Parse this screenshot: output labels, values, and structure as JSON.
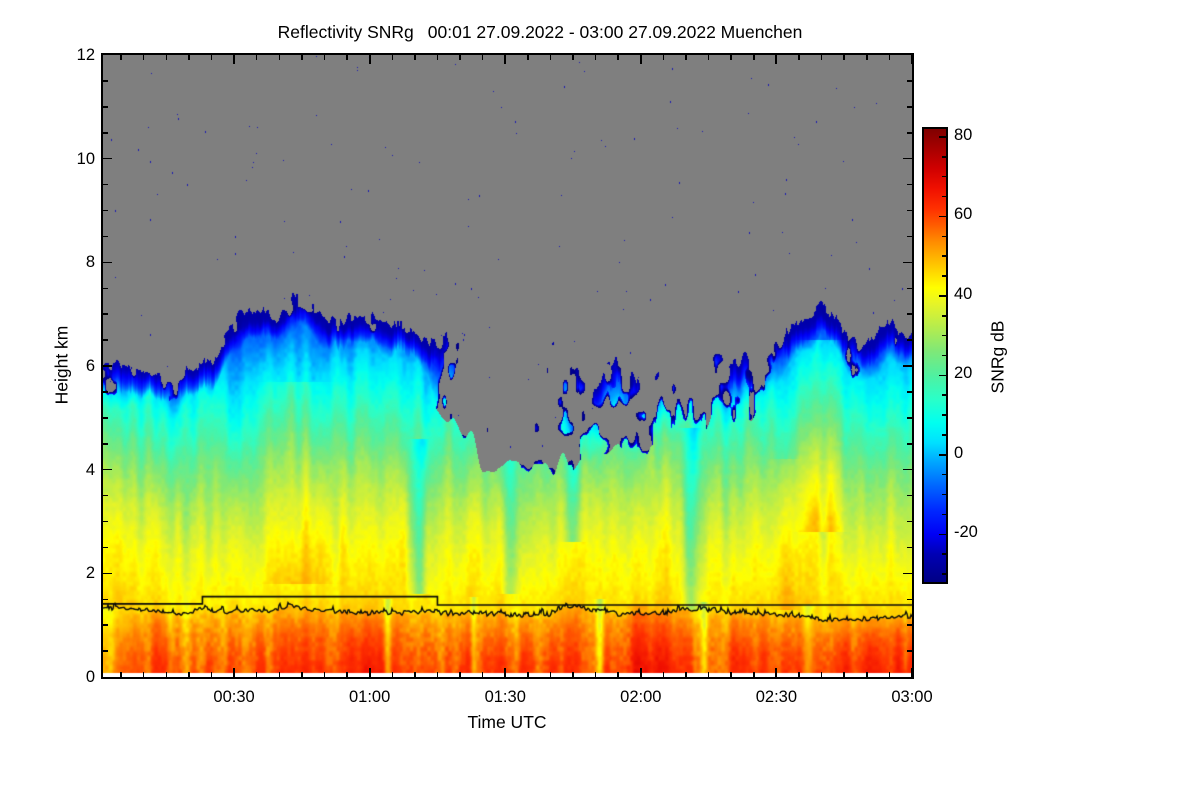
{
  "figure": {
    "background": "#ffffff"
  },
  "title": {
    "quantity": "Reflectivity SNRg",
    "period": "00:01 27.09.2022 - 03:00 27.09.2022 Muenchen"
  },
  "axes": {
    "x": {
      "label": "Time UTC",
      "start_min": 1,
      "end_min": 180,
      "major_ticks": [
        {
          "minute": 30,
          "label": "00:30"
        },
        {
          "minute": 60,
          "label": "01:00"
        },
        {
          "minute": 90,
          "label": "01:30"
        },
        {
          "minute": 120,
          "label": "02:00"
        },
        {
          "minute": 150,
          "label": "02:30"
        },
        {
          "minute": 180,
          "label": "03:00"
        }
      ],
      "minor_step_min": 5
    },
    "y": {
      "label": "Height km",
      "min": 0,
      "max": 12,
      "major_ticks": [
        0,
        2,
        4,
        6,
        8,
        10,
        12
      ],
      "minor_step": 0.5
    }
  },
  "colorbar": {
    "label": "SNRg dB",
    "value_min": -32,
    "value_max": 82,
    "tick_values": [
      80,
      60,
      40,
      20,
      0,
      -20
    ],
    "minor_step": 5
  },
  "chart_data": {
    "type": "heatmap",
    "quantity": "SNRg",
    "value_unit": "dB",
    "site": "Muenchen",
    "time_start": "00:01 27.09.2022",
    "time_end": "03:00 27.09.2022",
    "x_unit": "Time UTC",
    "y_unit": "Height km",
    "y_range": [
      0,
      12
    ],
    "value_range": [
      -32,
      82
    ],
    "no_data_color": "#7f7f7f",
    "lowest_gate_km": 0.08,
    "colormap": [
      [
        -32,
        "#000085"
      ],
      [
        -25,
        "#0000b4"
      ],
      [
        -20,
        "#0000f5"
      ],
      [
        -14,
        "#0028ff"
      ],
      [
        -8,
        "#0064ff"
      ],
      [
        -2,
        "#00a4ff"
      ],
      [
        3,
        "#00e0ff"
      ],
      [
        8,
        "#00fff0"
      ],
      [
        14,
        "#2affc8"
      ],
      [
        20,
        "#50f0a0"
      ],
      [
        26,
        "#7ee878"
      ],
      [
        32,
        "#b4ec4e"
      ],
      [
        38,
        "#e6f428"
      ],
      [
        42,
        "#ffff00"
      ],
      [
        46,
        "#ffd800"
      ],
      [
        50,
        "#ffb000"
      ],
      [
        54,
        "#ff8800"
      ],
      [
        58,
        "#ff5a00"
      ],
      [
        62,
        "#ff3000"
      ],
      [
        67,
        "#f01000"
      ],
      [
        72,
        "#d00000"
      ],
      [
        77,
        "#a80000"
      ],
      [
        82,
        "#800000"
      ]
    ],
    "sample_start_min": 1,
    "sample_step_min": 3,
    "cloud_top_km": [
      5.9,
      6.0,
      5.9,
      6.0,
      5.95,
      5.9,
      5.85,
      6.0,
      6.1,
      6.6,
      7.0,
      7.1,
      7.0,
      7.15,
      7.3,
      7.25,
      7.1,
      6.9,
      6.9,
      7.0,
      6.9,
      6.8,
      6.9,
      6.7,
      6.5,
      6.6,
      6.9,
      6.8,
      6.6,
      6.3,
      6.7,
      6.2,
      5.8,
      6.4,
      6.6,
      6.0,
      5.5,
      5.8,
      6.2,
      5.9,
      5.6,
      5.8,
      6.1,
      6.4,
      6.2,
      6.6,
      6.0,
      6.1,
      6.3,
      6.5,
      6.7,
      6.9,
      7.0,
      7.2,
      7.0,
      6.6,
      6.5,
      6.6,
      6.8,
      6.6
    ],
    "solid_cloud_top_km": [
      5.2,
      5.3,
      5.2,
      5.3,
      5.3,
      5.2,
      5.1,
      5.3,
      5.5,
      6.0,
      6.4,
      6.5,
      6.5,
      6.6,
      6.8,
      6.7,
      6.5,
      6.3,
      6.3,
      6.4,
      6.3,
      6.2,
      6.3,
      6.0,
      5.6,
      5.2,
      4.9,
      4.6,
      4.2,
      4.0,
      4.1,
      4.0,
      3.9,
      4.1,
      4.2,
      4.0,
      4.1,
      4.3,
      4.5,
      4.4,
      4.3,
      4.5,
      4.7,
      4.9,
      4.8,
      5.0,
      4.9,
      5.0,
      5.2,
      5.5,
      5.8,
      6.1,
      6.4,
      6.6,
      6.3,
      5.9,
      5.8,
      5.9,
      6.1,
      5.9
    ],
    "bright_band_top_km": [
      1.33,
      1.32,
      1.31,
      1.3,
      1.28,
      1.22,
      1.24,
      1.3,
      1.28,
      1.26,
      1.3,
      1.28,
      1.26,
      1.33,
      1.39,
      1.31,
      1.26,
      1.27,
      1.25,
      1.22,
      1.25,
      1.24,
      1.23,
      1.26,
      1.25,
      1.24,
      1.22,
      1.24,
      1.21,
      1.23,
      1.2,
      1.19,
      1.24,
      1.21,
      1.34,
      1.37,
      1.31,
      1.25,
      1.22,
      1.24,
      1.23,
      1.24,
      1.25,
      1.33,
      1.3,
      1.31,
      1.25,
      1.24,
      1.23,
      1.22,
      1.21,
      1.19,
      1.16,
      1.11,
      1.1,
      1.14,
      1.12,
      1.12,
      1.14,
      1.17
    ],
    "freezing_level_steps": [
      {
        "from_min": 1,
        "to_min": 23,
        "km": 1.41
      },
      {
        "from_min": 23,
        "to_min": 75,
        "km": 1.55
      },
      {
        "from_min": 75,
        "to_min": 180,
        "km": 1.39
      }
    ],
    "profile_below_ml_db": [
      [
        0,
        62
      ],
      [
        0.3,
        60
      ],
      [
        0.6,
        57
      ],
      [
        0.85,
        53
      ],
      [
        1,
        50
      ]
    ],
    "profile_above_ml_db": [
      [
        0,
        46
      ],
      [
        0.4,
        44
      ],
      [
        0.8,
        42
      ],
      [
        1.2,
        40
      ],
      [
        1.6,
        37
      ],
      [
        2.0,
        34
      ],
      [
        2.4,
        30
      ],
      [
        2.8,
        26
      ],
      [
        3.2,
        21
      ],
      [
        3.6,
        16
      ],
      [
        4.0,
        11
      ],
      [
        4.4,
        6
      ],
      [
        4.8,
        1
      ],
      [
        5.2,
        -5
      ],
      [
        5.6,
        -10
      ],
      [
        6.2,
        -16
      ],
      [
        7.0,
        -22
      ]
    ],
    "streak_amp_by_height": [
      [
        0,
        6
      ],
      [
        1.2,
        6
      ],
      [
        1.6,
        5
      ],
      [
        2.2,
        7
      ],
      [
        3,
        9
      ],
      [
        4,
        10
      ],
      [
        5,
        10
      ],
      [
        5.5,
        9
      ],
      [
        7,
        8
      ]
    ],
    "streak_events": [
      {
        "t": 44,
        "w": 6.0,
        "h0": 2.0,
        "h1": 5.5,
        "dv": 6
      },
      {
        "t": 71,
        "w": 1.6,
        "h0": 1.8,
        "h1": 4.4,
        "dv": -16
      },
      {
        "t": 91,
        "w": 1.5,
        "h0": 1.8,
        "h1": 4.3,
        "dv": -12
      },
      {
        "t": 105,
        "w": 1.8,
        "h0": 2.8,
        "h1": 5.2,
        "dv": -15
      },
      {
        "t": 131,
        "w": 1.8,
        "h0": 1.5,
        "h1": 4.6,
        "dv": -13
      },
      {
        "t": 160,
        "w": 4.0,
        "h0": 3.0,
        "h1": 6.3,
        "dv": 9
      },
      {
        "t": 152,
        "w": 2.5,
        "h0": 1.5,
        "h1": 4.0,
        "dv": 6
      },
      {
        "t": 64,
        "w": 0.8,
        "h0": 0.0,
        "h1": 1.3,
        "dv": -12
      },
      {
        "t": 83,
        "w": 0.7,
        "h0": 0.0,
        "h1": 1.35,
        "dv": -11
      },
      {
        "t": 111,
        "w": 0.9,
        "h0": 0.0,
        "h1": 1.3,
        "dv": -12
      },
      {
        "t": 134,
        "w": 0.8,
        "h0": 0.0,
        "h1": 1.25,
        "dv": -10
      },
      {
        "t": 157,
        "w": 1.2,
        "h0": 0.0,
        "h1": 1.2,
        "dv": -11
      },
      {
        "t": 120,
        "w": 4.0,
        "h0": 0.0,
        "h1": 1.2,
        "dv": 5
      }
    ],
    "warmup_until_min": 13,
    "speck_density": 0.00045,
    "speck_color": "#1818b4",
    "noise_seed": 1337
  }
}
